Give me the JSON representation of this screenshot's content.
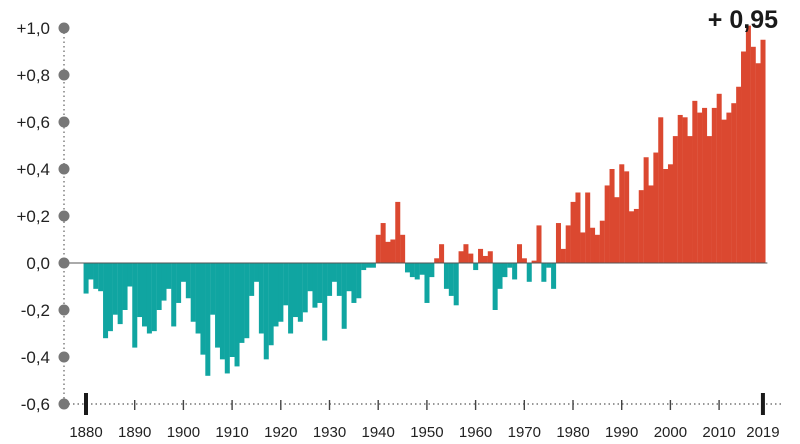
{
  "chart_data": {
    "type": "bar",
    "title": "",
    "xlabel": "",
    "ylabel": "",
    "ylim": [
      -0.6,
      1.0
    ],
    "yticks": [
      {
        "value": 1.0,
        "label": "+1,0"
      },
      {
        "value": 0.8,
        "label": "+0,8"
      },
      {
        "value": 0.6,
        "label": "+0,6"
      },
      {
        "value": 0.4,
        "label": "+0,4"
      },
      {
        "value": 0.2,
        "label": "+0,2"
      },
      {
        "value": 0.0,
        "label": "0,0"
      },
      {
        "value": -0.2,
        "label": "-0,2"
      },
      {
        "value": -0.4,
        "label": "-0,4"
      },
      {
        "value": -0.6,
        "label": "-0,6"
      }
    ],
    "xticks": [
      {
        "value": 1880,
        "label": "1880"
      },
      {
        "value": 1890,
        "label": "1890"
      },
      {
        "value": 1900,
        "label": "1900"
      },
      {
        "value": 1910,
        "label": "1910"
      },
      {
        "value": 1920,
        "label": "1920"
      },
      {
        "value": 1930,
        "label": "1930"
      },
      {
        "value": 1940,
        "label": "1940"
      },
      {
        "value": 1950,
        "label": "1950"
      },
      {
        "value": 1960,
        "label": "1960"
      },
      {
        "value": 1970,
        "label": "1970"
      },
      {
        "value": 1980,
        "label": "1980"
      },
      {
        "value": 1990,
        "label": "1990"
      },
      {
        "value": 2000,
        "label": "2000"
      },
      {
        "value": 2010,
        "label": "2010"
      },
      {
        "value": 2019,
        "label": "2019"
      }
    ],
    "emphasized_xticks": [
      1880,
      2019
    ],
    "annotation": {
      "text": "+ 0,95",
      "year": 2019
    },
    "colors": {
      "negative": "#10a5a1",
      "positive": "#db4830",
      "axis": "#777777",
      "text": "#1a1a1a"
    },
    "grid": false,
    "years": [
      1880,
      1881,
      1882,
      1883,
      1884,
      1885,
      1886,
      1887,
      1888,
      1889,
      1890,
      1891,
      1892,
      1893,
      1894,
      1895,
      1896,
      1897,
      1898,
      1899,
      1900,
      1901,
      1902,
      1903,
      1904,
      1905,
      1906,
      1907,
      1908,
      1909,
      1910,
      1911,
      1912,
      1913,
      1914,
      1915,
      1916,
      1917,
      1918,
      1919,
      1920,
      1921,
      1922,
      1923,
      1924,
      1925,
      1926,
      1927,
      1928,
      1929,
      1930,
      1931,
      1932,
      1933,
      1934,
      1935,
      1936,
      1937,
      1938,
      1939,
      1940,
      1941,
      1942,
      1943,
      1944,
      1945,
      1946,
      1947,
      1948,
      1949,
      1950,
      1951,
      1952,
      1953,
      1954,
      1955,
      1956,
      1957,
      1958,
      1959,
      1960,
      1961,
      1962,
      1963,
      1964,
      1965,
      1966,
      1967,
      1968,
      1969,
      1970,
      1971,
      1972,
      1973,
      1974,
      1975,
      1976,
      1977,
      1978,
      1979,
      1980,
      1981,
      1982,
      1983,
      1984,
      1985,
      1986,
      1987,
      1988,
      1989,
      1990,
      1991,
      1992,
      1993,
      1994,
      1995,
      1996,
      1997,
      1998,
      1999,
      2000,
      2001,
      2002,
      2003,
      2004,
      2005,
      2006,
      2007,
      2008,
      2009,
      2010,
      2011,
      2012,
      2013,
      2014,
      2015,
      2016,
      2017,
      2018,
      2019
    ],
    "values": [
      -0.13,
      -0.07,
      -0.11,
      -0.12,
      -0.32,
      -0.29,
      -0.22,
      -0.26,
      -0.2,
      -0.1,
      -0.36,
      -0.23,
      -0.27,
      -0.3,
      -0.29,
      -0.2,
      -0.16,
      -0.11,
      -0.27,
      -0.17,
      -0.08,
      -0.15,
      -0.25,
      -0.3,
      -0.39,
      -0.48,
      -0.22,
      -0.36,
      -0.41,
      -0.47,
      -0.4,
      -0.44,
      -0.34,
      -0.32,
      -0.14,
      -0.08,
      -0.3,
      -0.41,
      -0.35,
      -0.27,
      -0.25,
      -0.18,
      -0.3,
      -0.23,
      -0.25,
      -0.21,
      -0.12,
      -0.19,
      -0.17,
      -0.33,
      -0.14,
      -0.08,
      -0.14,
      -0.28,
      -0.12,
      -0.17,
      -0.15,
      -0.03,
      -0.02,
      -0.02,
      0.12,
      0.17,
      0.09,
      0.1,
      0.26,
      0.12,
      -0.04,
      -0.06,
      -0.07,
      -0.05,
      -0.17,
      -0.06,
      0.02,
      0.08,
      -0.11,
      -0.14,
      -0.18,
      0.05,
      0.08,
      0.04,
      -0.03,
      0.06,
      0.03,
      0.05,
      -0.2,
      -0.11,
      -0.06,
      -0.02,
      -0.07,
      0.08,
      0.02,
      -0.08,
      0.01,
      0.16,
      -0.08,
      -0.02,
      -0.11,
      0.17,
      0.06,
      0.16,
      0.26,
      0.3,
      0.13,
      0.3,
      0.15,
      0.12,
      0.18,
      0.33,
      0.4,
      0.28,
      0.42,
      0.39,
      0.22,
      0.23,
      0.31,
      0.45,
      0.33,
      0.47,
      0.62,
      0.4,
      0.42,
      0.54,
      0.63,
      0.62,
      0.54,
      0.69,
      0.64,
      0.66,
      0.54,
      0.66,
      0.72,
      0.61,
      0.64,
      0.68,
      0.75,
      0.9,
      1.01,
      0.92,
      0.85,
      0.95
    ]
  }
}
